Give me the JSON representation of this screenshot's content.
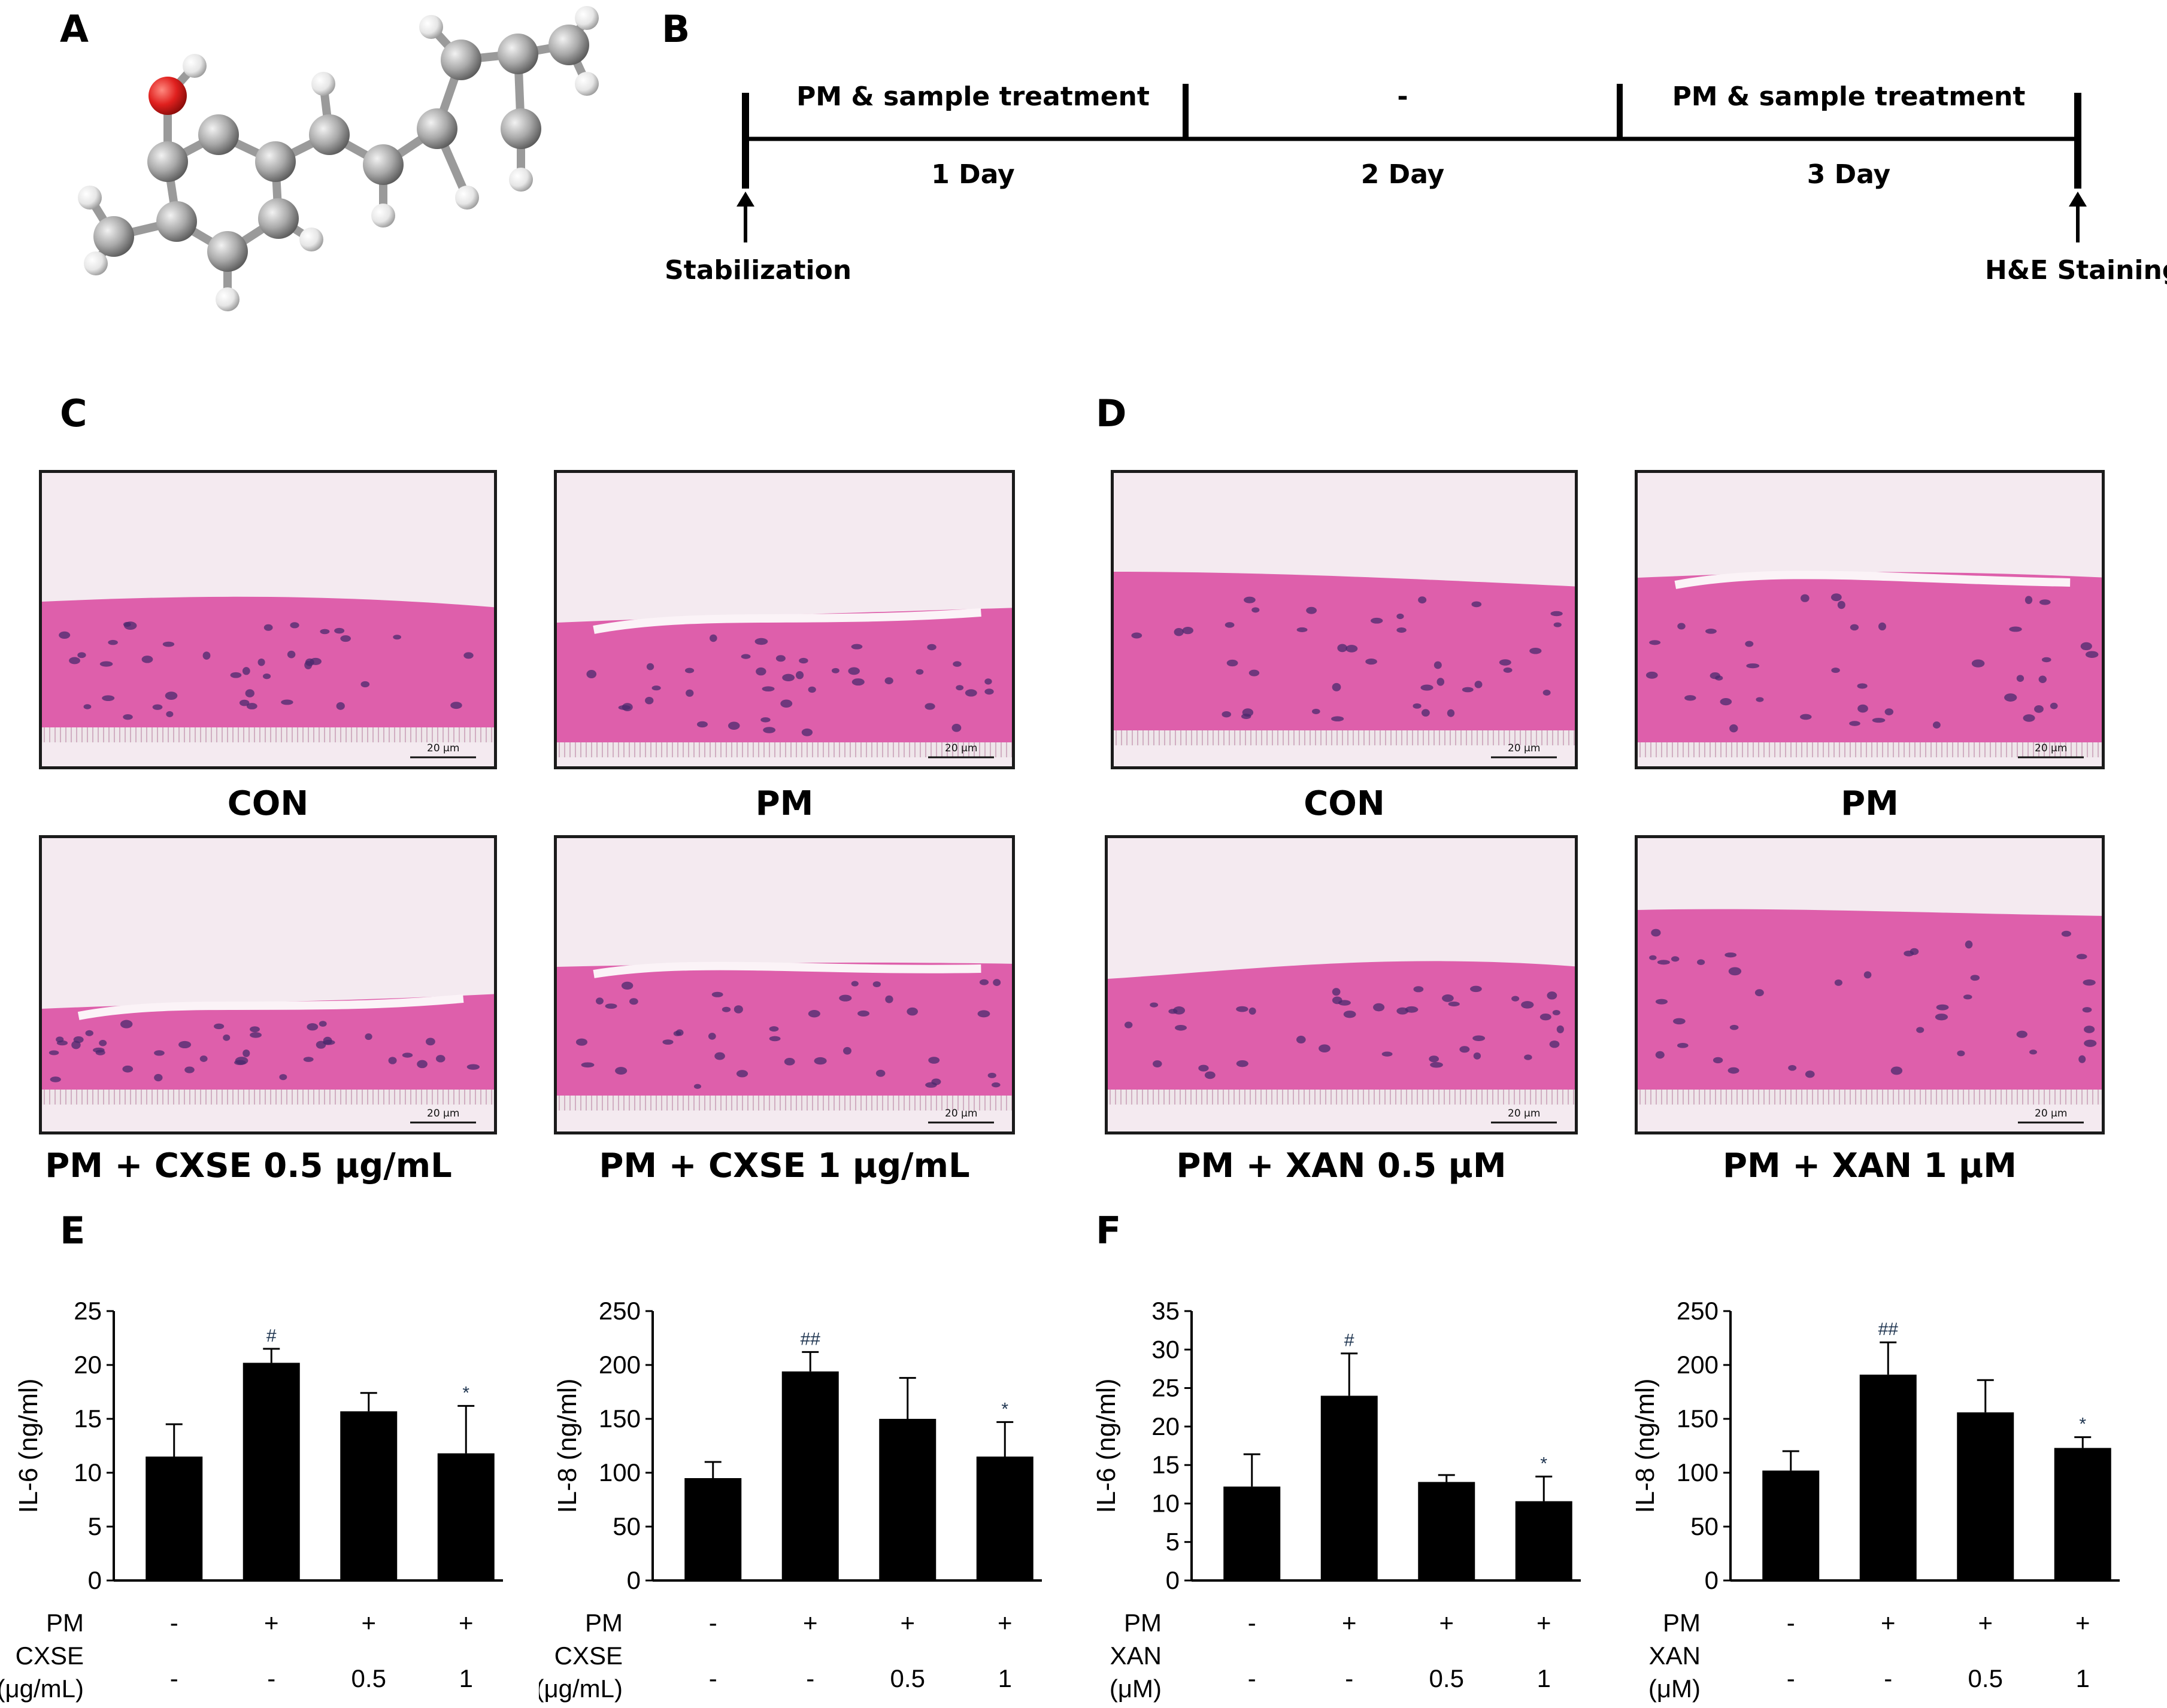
{
  "panel_labels": {
    "A": "A",
    "B": "B",
    "C": "C",
    "D": "D",
    "E": "E",
    "F": "F"
  },
  "timeline": {
    "phases": [
      {
        "top": "PM & sample treatment",
        "bottom": "1 Day"
      },
      {
        "top": "-",
        "bottom": "2 Day"
      },
      {
        "top": "PM & sample treatment",
        "bottom": "3 Day"
      }
    ],
    "start_label": "Stabilization",
    "end_label": "H&E Staining"
  },
  "histology": {
    "scale_bar": "20 μm",
    "C": {
      "top_left": "CON",
      "top_right": "PM",
      "bottom_left": "PM + CXSE 0.5 μg/mL",
      "bottom_right": "PM + CXSE 1 μg/mL"
    },
    "D": {
      "top_left": "CON",
      "top_right": "PM",
      "bottom_left": "PM + XAN 0.5 μM",
      "bottom_right": "PM + XAN 1 μM"
    }
  },
  "colors": {
    "bar": "#000000",
    "oxygen": "#e0201e",
    "carbon": "#a0a0a0",
    "hydrogen": "#f0f0f0",
    "stain_pink": "#d9479f",
    "nuclei": "#4a2a6e"
  },
  "chart_data": [
    {
      "type": "bar",
      "panel": "E",
      "ylabel": "IL-6 (ng/ml)",
      "ylim": [
        0,
        25
      ],
      "yticks": [
        0,
        5,
        10,
        15,
        20,
        25
      ],
      "values": [
        11.5,
        20.2,
        15.7,
        11.8
      ],
      "errors": [
        3.0,
        1.3,
        1.7,
        4.4
      ],
      "sig": [
        "",
        "#",
        "",
        "*"
      ],
      "rows": [
        {
          "label": "PM",
          "values": [
            "-",
            "+",
            "+",
            "+"
          ]
        },
        {
          "label": "CXSE",
          "values": [
            "-",
            "-",
            "0.5",
            "1"
          ]
        },
        {
          "label": "(μg/mL)",
          "values": []
        }
      ]
    },
    {
      "type": "bar",
      "panel": "E",
      "ylabel": "IL-8 (ng/ml)",
      "ylim": [
        0,
        250
      ],
      "yticks": [
        0,
        50,
        100,
        150,
        200,
        250
      ],
      "values": [
        95,
        194,
        150,
        115
      ],
      "errors": [
        15,
        18,
        38,
        32
      ],
      "sig": [
        "",
        "##",
        "",
        "*"
      ],
      "rows": [
        {
          "label": "PM",
          "values": [
            "-",
            "+",
            "+",
            "+"
          ]
        },
        {
          "label": "CXSE",
          "values": [
            "-",
            "-",
            "0.5",
            "1"
          ]
        },
        {
          "label": "(μg/mL)",
          "values": []
        }
      ]
    },
    {
      "type": "bar",
      "panel": "F",
      "ylabel": "IL-6 (ng/ml)",
      "ylim": [
        0,
        35
      ],
      "yticks": [
        0,
        5,
        10,
        15,
        20,
        25,
        30,
        35
      ],
      "values": [
        12.2,
        24.0,
        12.8,
        10.3
      ],
      "errors": [
        4.2,
        5.5,
        0.9,
        3.2
      ],
      "sig": [
        "",
        "#",
        "",
        "*"
      ],
      "rows": [
        {
          "label": "PM",
          "values": [
            "-",
            "+",
            "+",
            "+"
          ]
        },
        {
          "label": "XAN",
          "values": [
            "-",
            "-",
            "0.5",
            "1"
          ]
        },
        {
          "label": "(μM)",
          "values": []
        }
      ]
    },
    {
      "type": "bar",
      "panel": "F",
      "ylabel": "IL-8 (ng/ml)",
      "ylim": [
        0,
        250
      ],
      "yticks": [
        0,
        50,
        100,
        150,
        200,
        250
      ],
      "values": [
        102,
        191,
        156,
        123
      ],
      "errors": [
        18,
        30,
        30,
        10
      ],
      "sig": [
        "",
        "##",
        "",
        "*"
      ],
      "rows": [
        {
          "label": "PM",
          "values": [
            "-",
            "+",
            "+",
            "+"
          ]
        },
        {
          "label": "XAN",
          "values": [
            "-",
            "-",
            "0.5",
            "1"
          ]
        },
        {
          "label": "(μM)",
          "values": []
        }
      ]
    }
  ]
}
